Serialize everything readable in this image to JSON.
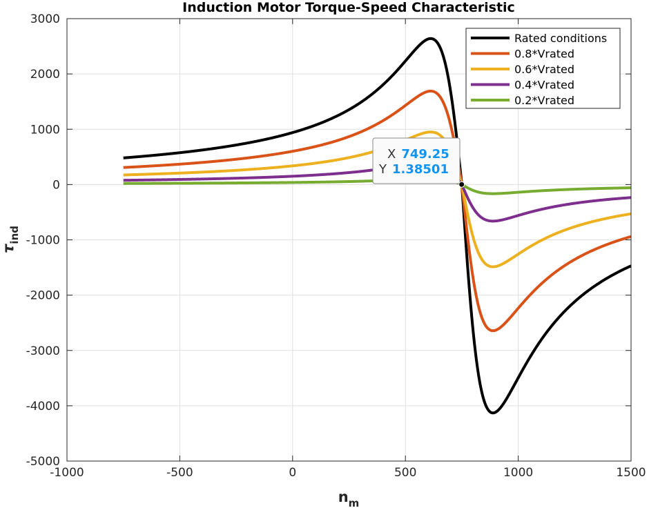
{
  "chart_data": {
    "type": "line",
    "title": "Induction Motor Torque-Speed Characteristic",
    "xlabel": "n_m",
    "ylabel": "τ_ind",
    "xlabel_main": "n",
    "xlabel_sub": "m",
    "ylabel_main": "τ",
    "ylabel_sub": "ind",
    "xlim": [
      -1000,
      1500
    ],
    "ylim": [
      -5000,
      3000
    ],
    "xticks": [
      -1000,
      -500,
      0,
      500,
      1000,
      1500
    ],
    "yticks": [
      -5000,
      -4000,
      -3000,
      -2000,
      -1000,
      0,
      1000,
      2000,
      3000
    ],
    "grid": true,
    "legend_position": "top-right",
    "x_range": [
      -750,
      1500
    ],
    "sync_speed": 750,
    "series": [
      {
        "name": "Rated conditions",
        "color": "#000000",
        "peak_motor": 2640,
        "speed_at_peak_motor": 612,
        "peak_generator": -4130,
        "speed_at_peak_generator": 888
      },
      {
        "name": "0.8*Vrated",
        "color": "#d95319",
        "peak_motor": 1690,
        "speed_at_peak_motor": 612,
        "peak_generator": -2643,
        "speed_at_peak_generator": 888
      },
      {
        "name": "0.6*Vrated",
        "color": "#edb120",
        "peak_motor": 950,
        "speed_at_peak_motor": 612,
        "peak_generator": -1487,
        "speed_at_peak_generator": 888
      },
      {
        "name": "0.4*Vrated",
        "color": "#7e2f8e",
        "peak_motor": 422,
        "speed_at_peak_motor": 612,
        "peak_generator": -661,
        "speed_at_peak_generator": 888
      },
      {
        "name": "0.2*Vrated",
        "color": "#77ac30",
        "peak_motor": 106,
        "speed_at_peak_motor": 612,
        "peak_generator": -165,
        "speed_at_peak_generator": 888
      }
    ],
    "datatip": {
      "x_label": "X",
      "y_label": "Y",
      "x": 749.25,
      "y": 1.38501,
      "x_text": "749.25",
      "y_text": "1.38501"
    }
  }
}
